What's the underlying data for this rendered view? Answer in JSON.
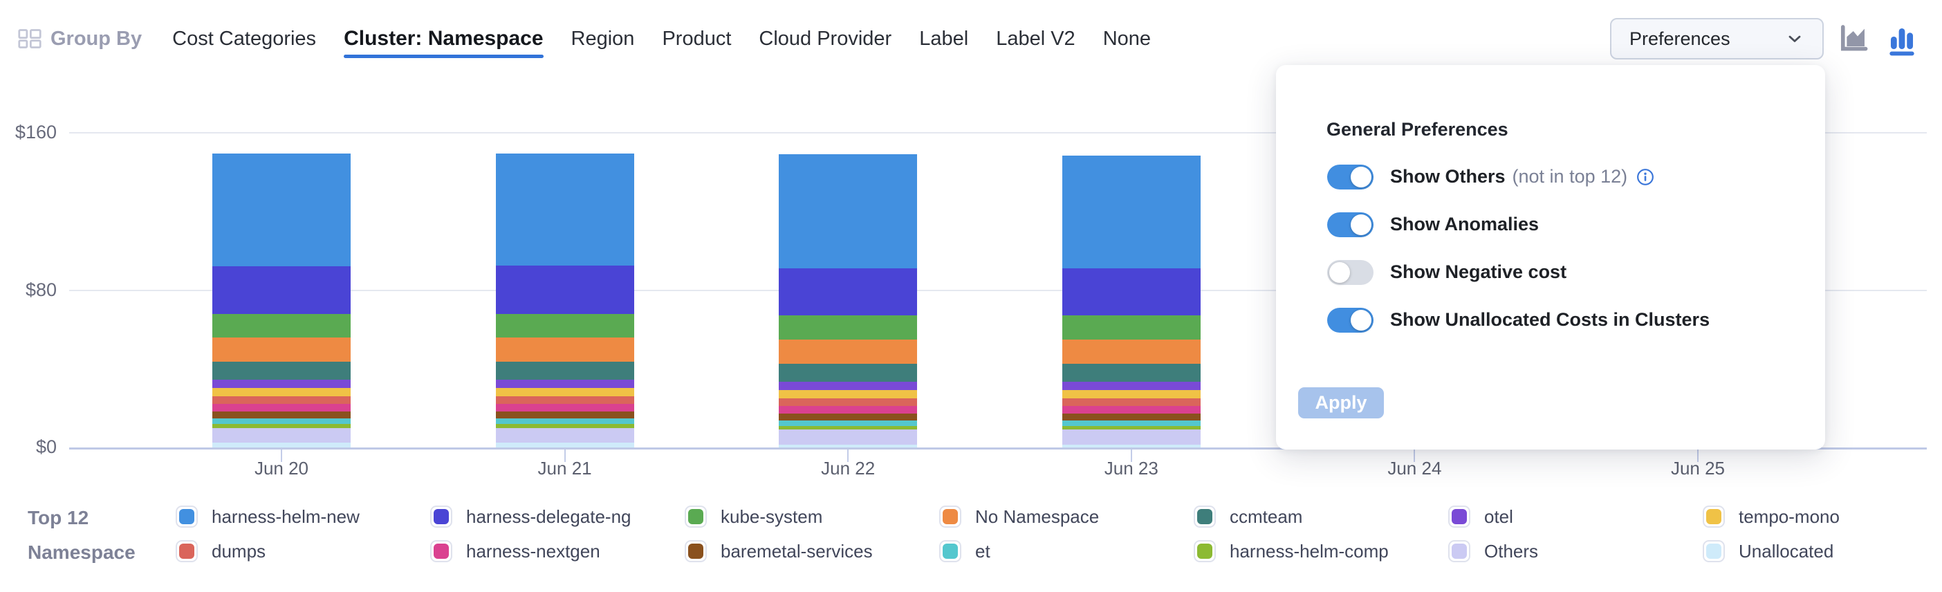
{
  "header": {
    "group_by_label": "Group By",
    "tabs": [
      {
        "label": "Cost Categories",
        "active": false
      },
      {
        "label": "Cluster: Namespace",
        "active": true
      },
      {
        "label": "Region",
        "active": false
      },
      {
        "label": "Product",
        "active": false
      },
      {
        "label": "Cloud Provider",
        "active": false
      },
      {
        "label": "Label",
        "active": false
      },
      {
        "label": "Label V2",
        "active": false
      },
      {
        "label": "None",
        "active": false
      }
    ],
    "preferences_label": "Preferences",
    "chart_type_icons": [
      {
        "name": "area-chart-icon",
        "selected": false,
        "color": "#9296a8"
      },
      {
        "name": "bar-chart-icon",
        "selected": true,
        "color": "#3a77db"
      }
    ]
  },
  "preferences_panel": {
    "title": "General Preferences",
    "toggles": [
      {
        "label": "Show Others",
        "suffix": "(not in top 12)",
        "info_icon": true,
        "on": true
      },
      {
        "label": "Show Anomalies",
        "suffix": "",
        "info_icon": false,
        "on": true
      },
      {
        "label": "Show Negative cost",
        "suffix": "",
        "info_icon": false,
        "on": false
      },
      {
        "label": "Show Unallocated Costs in Clusters",
        "suffix": "",
        "info_icon": false,
        "on": true
      }
    ],
    "apply_label": "Apply",
    "accent_color": "#418ee0"
  },
  "legend": {
    "title_line1": "Top 12",
    "title_line2": "Namespace"
  },
  "chart_data": {
    "type": "bar",
    "stacked": true,
    "title": "",
    "xlabel": "",
    "ylabel": "",
    "categories": [
      "Jun 20",
      "Jun 21",
      "Jun 22",
      "Jun 23",
      "Jun 24",
      "Jun 25"
    ],
    "bar_categories": [
      "Jun 20",
      "Jun 21",
      "Jun 22",
      "Jun 23"
    ],
    "y_ticks": [
      {
        "label": "$160",
        "value": 160
      },
      {
        "label": "$80",
        "value": 80
      },
      {
        "label": "$0",
        "value": 0
      }
    ],
    "ylim": [
      0,
      160
    ],
    "grid": "horizontal",
    "legend_position": "bottom",
    "series": [
      {
        "name": "harness-helm-new",
        "color": "#4290e0",
        "values": [
          57.5,
          57,
          58,
          57.5
        ]
      },
      {
        "name": "harness-delegate-ng",
        "color": "#4a44d5",
        "values": [
          24,
          24.5,
          24,
          24
        ]
      },
      {
        "name": "kube-system",
        "color": "#5aaa52",
        "values": [
          12,
          12,
          12,
          12
        ]
      },
      {
        "name": "No Namespace",
        "color": "#ee8a43",
        "values": [
          12.5,
          12.5,
          12.5,
          12.5
        ]
      },
      {
        "name": "ccmteam",
        "color": "#3e7e7b",
        "values": [
          9,
          9,
          9,
          9
        ]
      },
      {
        "name": "otel",
        "color": "#7a4ad6",
        "values": [
          4.2,
          4.2,
          4.2,
          4.2
        ]
      },
      {
        "name": "tempo-mono",
        "color": "#f0c246",
        "values": [
          4.3,
          4.3,
          4.3,
          4.3
        ]
      },
      {
        "name": "dumps",
        "color": "#da655b",
        "values": [
          3.8,
          3.8,
          3.8,
          3.8
        ]
      },
      {
        "name": "harness-nextgen",
        "color": "#da4190",
        "values": [
          3.9,
          3.9,
          3.9,
          3.9
        ]
      },
      {
        "name": "baremetal-services",
        "color": "#8a511e",
        "values": [
          3.5,
          3.5,
          3.5,
          3.5
        ]
      },
      {
        "name": "et",
        "color": "#54c7ce",
        "values": [
          2.8,
          2.8,
          2.8,
          2.8
        ]
      },
      {
        "name": "harness-helm-comp",
        "color": "#8cba33",
        "values": [
          2,
          2,
          2,
          2
        ]
      },
      {
        "name": "Others",
        "color": "#cbcaf3",
        "values": [
          7.5,
          7.5,
          7.5,
          7.5
        ]
      },
      {
        "name": "Unallocated",
        "color": "#cfebfa",
        "values": [
          2.5,
          2.5,
          1.5,
          1.5
        ]
      }
    ]
  }
}
